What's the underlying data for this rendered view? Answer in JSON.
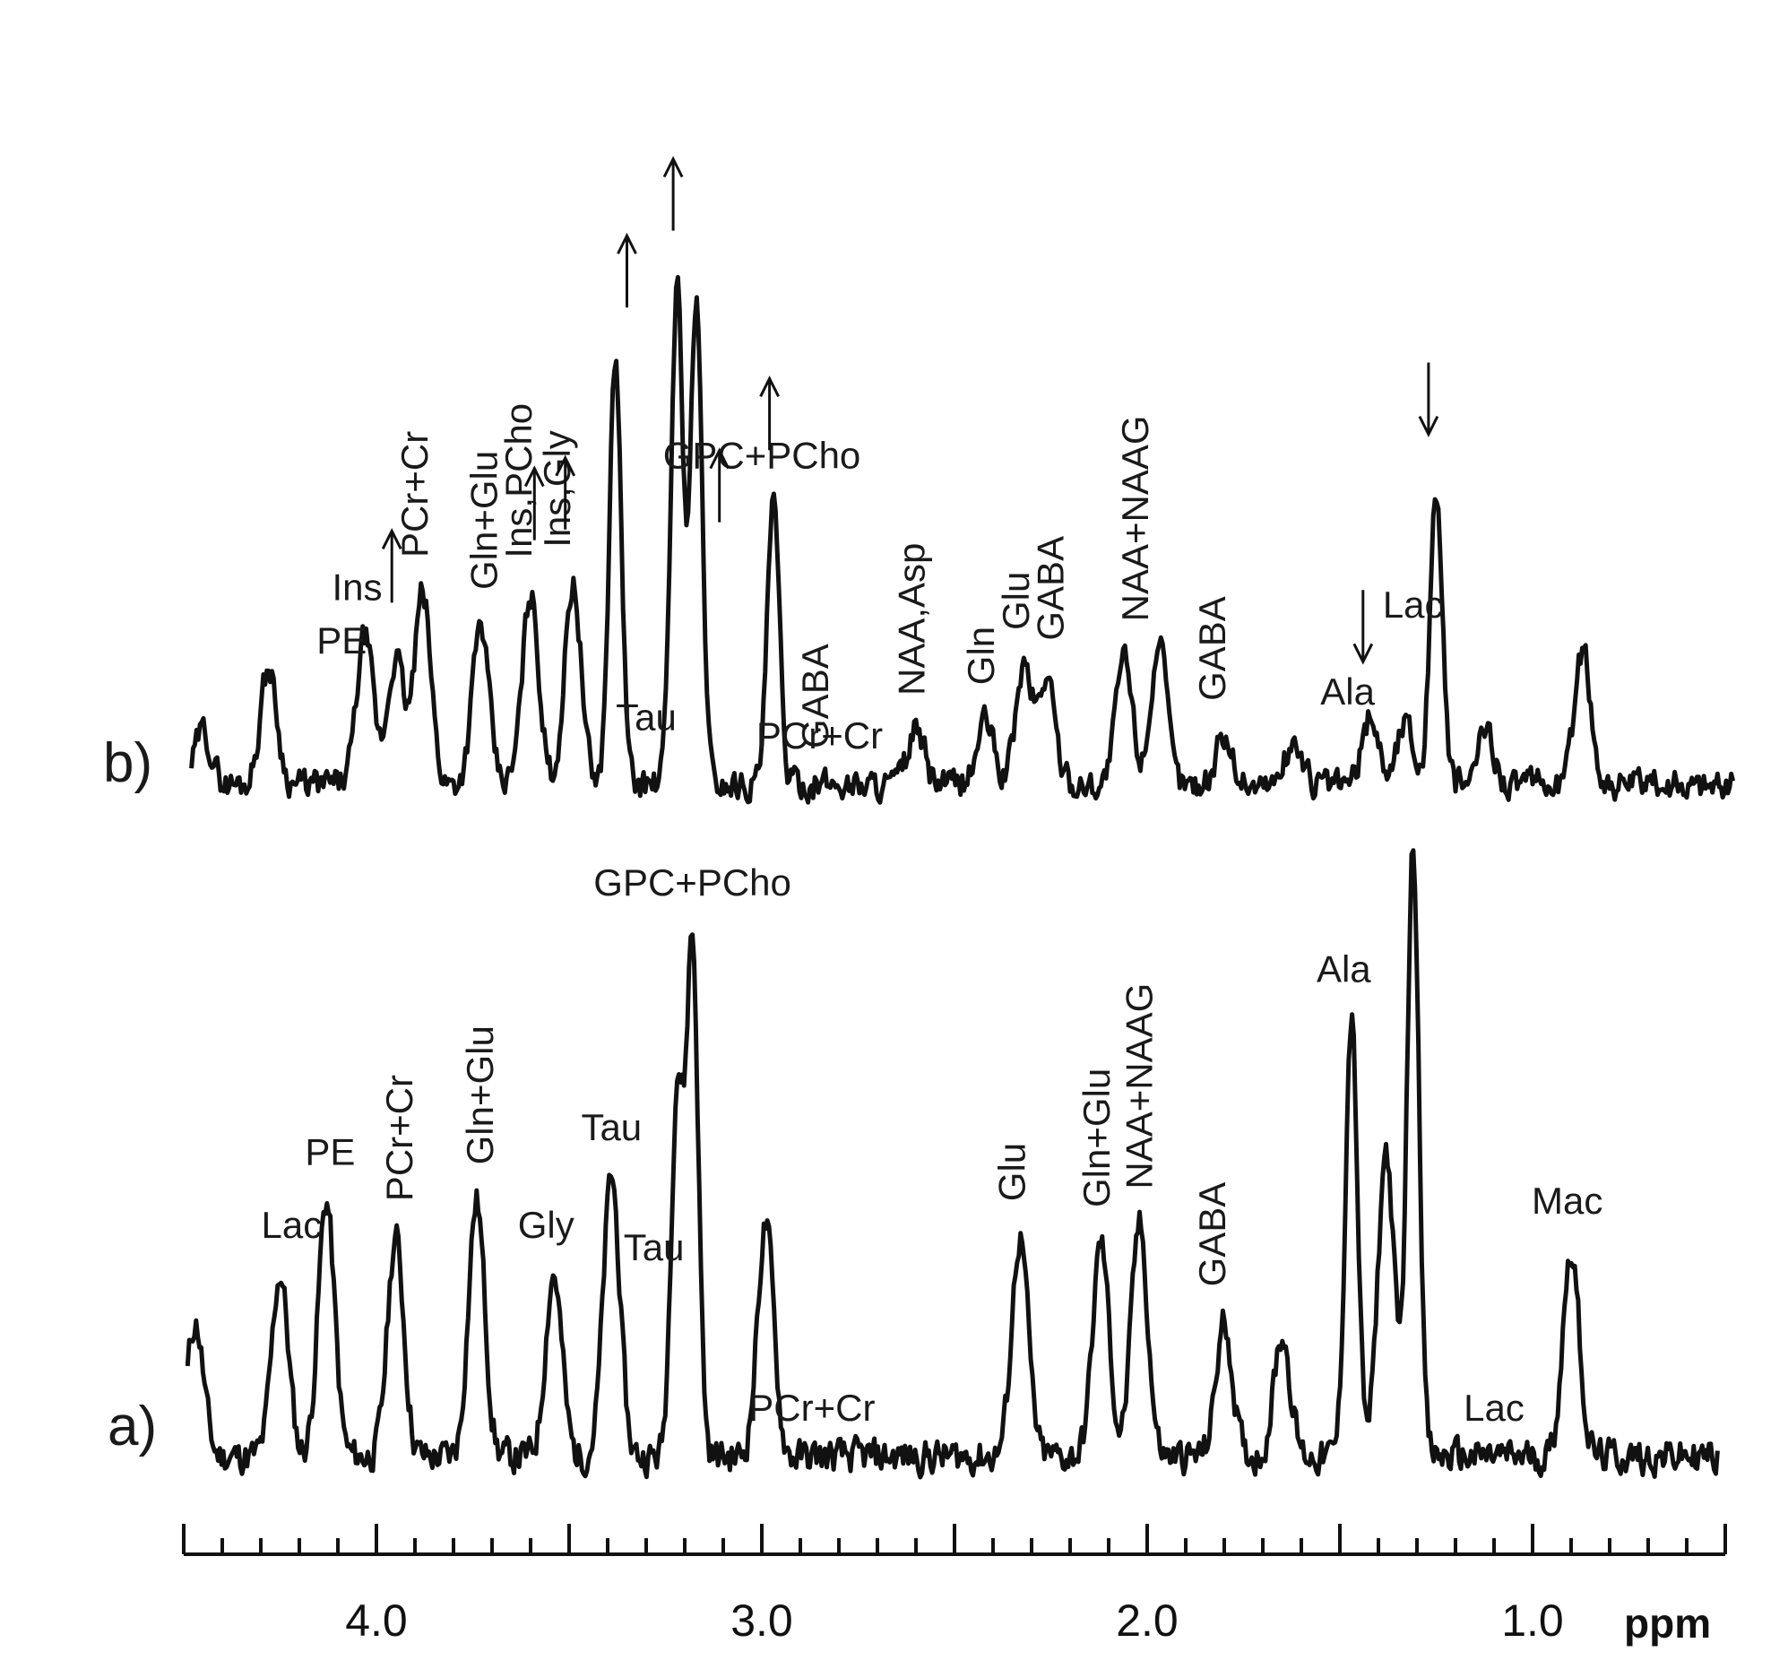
{
  "chart_data": {
    "type": "line",
    "xlabel": "ppm",
    "xlim": [
      4.5,
      0.5
    ],
    "x_reversed": true,
    "x_ticks": [
      "4.0",
      "3.0",
      "2.0",
      "1.0"
    ],
    "line_color": "#111111",
    "panels": [
      {
        "id": "a",
        "label": "a)",
        "peaks": [
          {
            "x": 4.47,
            "y": 0.22
          },
          {
            "x": 4.25,
            "y": 0.3
          },
          {
            "x": 4.13,
            "y": 0.42
          },
          {
            "x": 3.95,
            "y": 0.36
          },
          {
            "x": 3.74,
            "y": 0.42
          },
          {
            "x": 3.54,
            "y": 0.3
          },
          {
            "x": 3.39,
            "y": 0.46
          },
          {
            "x": 3.22,
            "y": 0.6
          },
          {
            "x": 3.18,
            "y": 0.84
          },
          {
            "x": 2.99,
            "y": 0.38
          },
          {
            "x": 2.33,
            "y": 0.36
          },
          {
            "x": 2.12,
            "y": 0.35
          },
          {
            "x": 2.02,
            "y": 0.38
          },
          {
            "x": 1.8,
            "y": 0.22
          },
          {
            "x": 1.65,
            "y": 0.2
          },
          {
            "x": 1.47,
            "y": 0.72
          },
          {
            "x": 1.38,
            "y": 0.5
          },
          {
            "x": 1.31,
            "y": 1.0
          },
          {
            "x": 0.9,
            "y": 0.34
          }
        ],
        "annotations": [
          {
            "text": "Lac",
            "x": 4.22,
            "vertical": false
          },
          {
            "text": "PE",
            "x": 4.12,
            "vertical": false
          },
          {
            "text": "PCr+Cr",
            "x": 3.94,
            "vertical": true
          },
          {
            "text": "Gln+Glu",
            "x": 3.73,
            "vertical": true
          },
          {
            "text": "Gly",
            "x": 3.56,
            "vertical": false
          },
          {
            "text": "Tau",
            "x": 3.39,
            "vertical": false
          },
          {
            "text": "Tau",
            "x": 3.28,
            "vertical": false
          },
          {
            "text": "GPC+PCho",
            "x": 3.18,
            "vertical": false
          },
          {
            "text": "PCr+Cr",
            "x": 2.87,
            "vertical": false
          },
          {
            "text": "Glu",
            "x": 2.35,
            "vertical": true
          },
          {
            "text": "Gln+Glu",
            "x": 2.13,
            "vertical": true
          },
          {
            "text": "NAA+NAAG",
            "x": 2.02,
            "vertical": true
          },
          {
            "text": "GABA",
            "x": 1.83,
            "vertical": true
          },
          {
            "text": "Ala",
            "x": 1.49,
            "vertical": false
          },
          {
            "text": "Lac",
            "x": 1.1,
            "vertical": false
          },
          {
            "text": "Mac",
            "x": 0.91,
            "vertical": false
          }
        ]
      },
      {
        "id": "b",
        "label": "b)",
        "peaks": [
          {
            "x": 4.45,
            "y": 0.1
          },
          {
            "x": 4.28,
            "y": 0.22
          },
          {
            "x": 4.03,
            "y": 0.28
          },
          {
            "x": 3.95,
            "y": 0.24
          },
          {
            "x": 3.88,
            "y": 0.36
          },
          {
            "x": 3.73,
            "y": 0.3
          },
          {
            "x": 3.6,
            "y": 0.36
          },
          {
            "x": 3.49,
            "y": 0.38
          },
          {
            "x": 3.38,
            "y": 0.8
          },
          {
            "x": 3.22,
            "y": 0.94
          },
          {
            "x": 3.17,
            "y": 0.9
          },
          {
            "x": 2.97,
            "y": 0.53
          },
          {
            "x": 2.6,
            "y": 0.1
          },
          {
            "x": 2.42,
            "y": 0.12
          },
          {
            "x": 2.32,
            "y": 0.22
          },
          {
            "x": 2.26,
            "y": 0.2
          },
          {
            "x": 2.06,
            "y": 0.24
          },
          {
            "x": 1.97,
            "y": 0.26
          },
          {
            "x": 1.8,
            "y": 0.09
          },
          {
            "x": 1.62,
            "y": 0.08
          },
          {
            "x": 1.42,
            "y": 0.13
          },
          {
            "x": 1.33,
            "y": 0.12
          },
          {
            "x": 1.25,
            "y": 0.56
          },
          {
            "x": 1.12,
            "y": 0.1
          },
          {
            "x": 0.87,
            "y": 0.25
          }
        ],
        "annotations": [
          {
            "text": "PE",
            "x": 4.09,
            "vertical": false
          },
          {
            "text": "Ins",
            "x": 4.05,
            "vertical": false
          },
          {
            "text": "PCr+Cr",
            "x": 3.9,
            "vertical": true
          },
          {
            "text": "Gln+Glu",
            "x": 3.72,
            "vertical": true
          },
          {
            "text": "Ins,PCho",
            "x": 3.63,
            "vertical": true
          },
          {
            "text": "Ins,Gly",
            "x": 3.53,
            "vertical": true
          },
          {
            "text": "Tau",
            "x": 3.3,
            "vertical": false
          },
          {
            "text": "GPC+PCho",
            "x": 3.0,
            "vertical": false
          },
          {
            "text": "PCr+Cr",
            "x": 2.85,
            "vertical": false
          },
          {
            "text": "GABA",
            "x": 2.86,
            "vertical": true
          },
          {
            "text": "NAA,Asp",
            "x": 2.61,
            "vertical": true
          },
          {
            "text": "Gln",
            "x": 2.43,
            "vertical": true
          },
          {
            "text": "Glu",
            "x": 2.34,
            "vertical": true
          },
          {
            "text": "GABA",
            "x": 2.25,
            "vertical": true
          },
          {
            "text": "NAA+NAAG",
            "x": 2.03,
            "vertical": true
          },
          {
            "text": "GABA",
            "x": 1.83,
            "vertical": true
          },
          {
            "text": "Ala",
            "x": 1.48,
            "vertical": false
          },
          {
            "text": "Lac",
            "x": 1.31,
            "vertical": false
          }
        ],
        "arrows": [
          {
            "x": 3.96,
            "direction": "up"
          },
          {
            "x": 3.59,
            "direction": "up"
          },
          {
            "x": 3.51,
            "direction": "up"
          },
          {
            "x": 3.35,
            "direction": "up"
          },
          {
            "x": 3.23,
            "direction": "up"
          },
          {
            "x": 3.11,
            "direction": "up"
          },
          {
            "x": 2.98,
            "direction": "up"
          },
          {
            "x": 1.44,
            "direction": "down"
          },
          {
            "x": 1.27,
            "direction": "down"
          }
        ]
      }
    ]
  }
}
